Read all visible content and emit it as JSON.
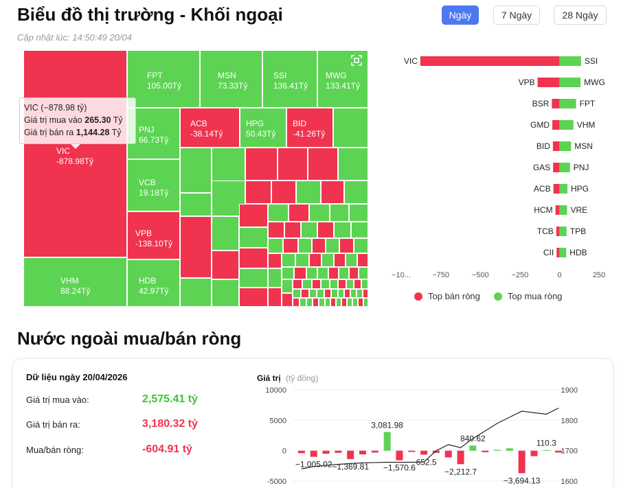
{
  "header": {
    "title": "Biểu đồ thị trường - Khối ngoại",
    "updated": "Cập nhật lúc: 14:50:49 20/04",
    "ranges": [
      {
        "label": "Ngày",
        "active": true
      },
      {
        "label": "7 Ngày",
        "active": false
      },
      {
        "label": "28 Ngày",
        "active": false
      }
    ]
  },
  "colors": {
    "buy": "#5dd354",
    "sell": "#f0334f",
    "accent": "#4d79f0"
  },
  "treemap": {
    "tiles": [
      {
        "name": "VIC",
        "value": "-878.98Tỷ",
        "side": "sell"
      },
      {
        "name": "VHM",
        "value": "88.24Tỷ",
        "side": "buy"
      },
      {
        "name": "FPT",
        "value": "105.00Tỷ",
        "side": "buy"
      },
      {
        "name": "MSN",
        "value": "73.33Tỷ",
        "side": "buy"
      },
      {
        "name": "SSI",
        "value": "136.41Tỷ",
        "side": "buy"
      },
      {
        "name": "MWG",
        "value": "133.41Tỷ",
        "side": "buy"
      },
      {
        "name": "PNJ",
        "value": "66.73Tỷ",
        "side": "buy"
      },
      {
        "name": "ACB",
        "value": "-38.14Tỷ",
        "side": "sell"
      },
      {
        "name": "HPG",
        "value": "50.43Tỷ",
        "side": "buy"
      },
      {
        "name": "BID",
        "value": "-41.26Tỷ",
        "side": "sell"
      },
      {
        "name": "VCB",
        "value": "19.18Tỷ",
        "side": "buy"
      },
      {
        "name": "VPB",
        "value": "-138.10Tỷ",
        "side": "sell"
      },
      {
        "name": "HDB",
        "value": "42.97Tỷ",
        "side": "buy"
      }
    ],
    "expand_icon": "expand-icon",
    "tooltip": {
      "title": "VIC (−878.98 tỷ)",
      "buy_label": "Giá trị mua vào",
      "buy_value": "265.30",
      "sell_label": "Giá trị bán ra",
      "sell_value": "1,144.28",
      "unit": "Tỷ"
    }
  },
  "top_chart": {
    "sell_labels": [
      "VIC",
      "VPB",
      "BSR",
      "GMD",
      "BID",
      "GAS",
      "ACB",
      "HCM",
      "TCB",
      "CII"
    ],
    "buy_labels": [
      "SSI",
      "MWG",
      "FPT",
      "VHM",
      "MSN",
      "PNJ",
      "HPG",
      "VRE",
      "TPB",
      "HDB"
    ],
    "axis_ticks": [
      "−10...",
      "−750",
      "−500",
      "−250",
      "0",
      "250"
    ],
    "legend_sell": "Top bán ròng",
    "legend_buy": "Top mua ròng"
  },
  "chart_data": [
    {
      "type": "bar",
      "orientation": "horizontal",
      "x_ticks": [
        -1000,
        -750,
        -500,
        -250,
        0,
        250
      ],
      "xlim": [
        -1000,
        250
      ],
      "series": [
        {
          "name": "Top bán ròng",
          "categories": [
            "VIC",
            "VPB",
            "BSR",
            "GMD",
            "BID",
            "GAS",
            "ACB",
            "HCM",
            "TCB",
            "CII"
          ],
          "values": [
            -878.98,
            -138.1,
            -48,
            -45,
            -41.26,
            -40,
            -38.14,
            -25,
            -20,
            -18
          ]
        },
        {
          "name": "Top mua ròng",
          "categories": [
            "SSI",
            "MWG",
            "FPT",
            "VHM",
            "MSN",
            "PNJ",
            "HPG",
            "VRE",
            "TPB",
            "HDB"
          ],
          "values": [
            136.41,
            133.41,
            105.0,
            88.24,
            73.33,
            66.73,
            50.43,
            48,
            45,
            42.97
          ]
        }
      ]
    },
    {
      "type": "bar",
      "ylabel": "Giá trị",
      "ylabel_unit": "(tỷ đồng)",
      "left_ticks": [
        10000,
        5000,
        0,
        -5000
      ],
      "right_ticks": [
        1900,
        1800,
        1700,
        1600
      ],
      "ylim": [
        -5000,
        10000
      ],
      "right_ylim": [
        1600,
        1900
      ],
      "values": [
        -400,
        -1005.02,
        -500,
        -350,
        -1369.81,
        -600,
        -300,
        3081.98,
        -1570.6,
        -200,
        -652.5,
        -350,
        -1100,
        -2212.7,
        840.62,
        -250,
        150,
        400,
        -3694.13,
        -900,
        110.3,
        -300
      ],
      "labeled_values": [
        {
          "index": 1,
          "label": "−1,005.02"
        },
        {
          "index": 4,
          "label": "−1,369.81"
        },
        {
          "index": 7,
          "label": "3,081.98"
        },
        {
          "index": 8,
          "label": "−1,570.6"
        },
        {
          "index": 10,
          "label": "−652.5"
        },
        {
          "index": 13,
          "label": "−2,212.7"
        },
        {
          "index": 14,
          "label": "840.62"
        },
        {
          "index": 18,
          "label": "−3,694.13"
        },
        {
          "index": 20,
          "label": "110.3"
        }
      ],
      "line": [
        1640,
        1648,
        1652,
        1655,
        1658,
        1660,
        1661,
        1662,
        1662,
        1662,
        1663,
        1700,
        1720,
        1710,
        1740,
        1765,
        1790,
        1810,
        1830,
        1825,
        1820,
        1840
      ]
    }
  ],
  "net_section": {
    "title": "Nước ngoài mua/bán ròng",
    "date_label": "Dữ liệu ngày 20/04/2026",
    "rows": [
      {
        "label": "Giá trị mua vào:",
        "value": "2,575.41 tỷ"
      },
      {
        "label": "Giá trị bán ra:",
        "value": "3,180.32 tỷ"
      },
      {
        "label": "Mua/bán ròng:",
        "value": "-604.91 tỷ"
      }
    ]
  }
}
